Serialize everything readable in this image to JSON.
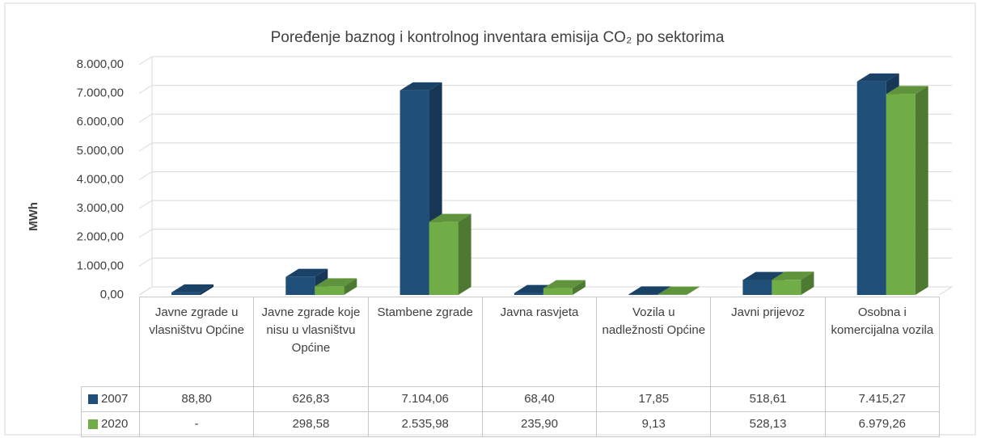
{
  "chart_data": {
    "type": "bar3d",
    "title": "Poređenje baznog i kontrolnog inventara emisija CO₂ po sektorima",
    "y_label": "MWh",
    "categories": [
      "Javne zgrade u vlasništvu Općine",
      "Javne zgrade koje nisu u vlasništvu Općine",
      "Stambene zgrade",
      "Javna rasvjeta",
      "Vozila u nadležnosti Općine",
      "Javni prijevoz",
      "Osobna i komercijalna vozila"
    ],
    "series": [
      {
        "name": "2007",
        "color": "#1f4e79",
        "values": [
          88.8,
          626.83,
          7104.06,
          68.4,
          17.85,
          518.61,
          7415.27
        ],
        "value_labels": [
          "88,80",
          "626,83",
          "7.104,06",
          "68,40",
          "17,85",
          "518,61",
          "7.415,27"
        ]
      },
      {
        "name": "2020",
        "color": "#70ad47",
        "values": [
          null,
          298.58,
          2535.98,
          235.9,
          9.13,
          528.13,
          6979.26
        ],
        "value_labels": [
          "-",
          "298,58",
          "2.535,98",
          "235,90",
          "9,13",
          "528,13",
          "6.979,26"
        ]
      }
    ],
    "ylim": [
      0,
      8000
    ],
    "yticks": [
      {
        "value": 0,
        "label": "0,00"
      },
      {
        "value": 1000,
        "label": "1.000,00"
      },
      {
        "value": 2000,
        "label": "2.000,00"
      },
      {
        "value": 3000,
        "label": "3.000,00"
      },
      {
        "value": 4000,
        "label": "4.000,00"
      },
      {
        "value": 5000,
        "label": "5.000,00"
      },
      {
        "value": 6000,
        "label": "6.000,00"
      },
      {
        "value": 7000,
        "label": "7.000,00"
      },
      {
        "value": 8000,
        "label": "8.000,00"
      }
    ],
    "grid": true
  }
}
